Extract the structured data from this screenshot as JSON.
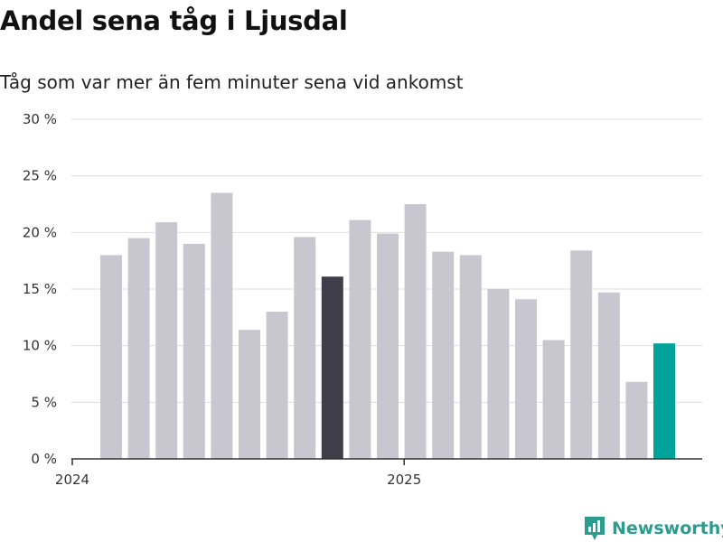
{
  "title": "Andel sena tåg i Ljusdal",
  "subtitle": "Tåg som var mer än fem minuter sena vid ankomst",
  "brand": {
    "name": "Newsworthy",
    "icon": "newsworthy-logo-icon",
    "color": "#2a9d8f"
  },
  "colors": {
    "default_bar": "#c8c7d0",
    "highlight_dark": "#3f3d4a",
    "highlight_latest": "#00a39a",
    "grid": "#dddddd",
    "axis": "#333333"
  },
  "chart_data": {
    "type": "bar",
    "title": "Andel sena tåg i Ljusdal",
    "subtitle": "Tåg som var mer än fem minuter sena vid ankomst",
    "xlabel": "",
    "ylabel": "",
    "ylim": [
      0,
      30
    ],
    "yticks": [
      0,
      5,
      10,
      15,
      20,
      25,
      30
    ],
    "ytick_labels": [
      "0 %",
      "5 %",
      "10 %",
      "15 %",
      "20 %",
      "25 %",
      "30 %"
    ],
    "x_tick_labels": [
      {
        "label": "2024",
        "index": 0
      },
      {
        "label": "2025",
        "index": 12
      }
    ],
    "grid": true,
    "values": [
      18.0,
      19.5,
      20.9,
      19.0,
      23.5,
      11.4,
      13.0,
      19.6,
      16.1,
      21.1,
      19.9,
      22.5,
      18.3,
      18.0,
      15.0,
      14.1,
      10.5,
      18.4,
      14.7,
      6.8,
      10.2
    ],
    "highlight": [
      {
        "index": 8,
        "color": "#3f3d4a"
      },
      {
        "index": 20,
        "color": "#00a39a"
      }
    ]
  }
}
